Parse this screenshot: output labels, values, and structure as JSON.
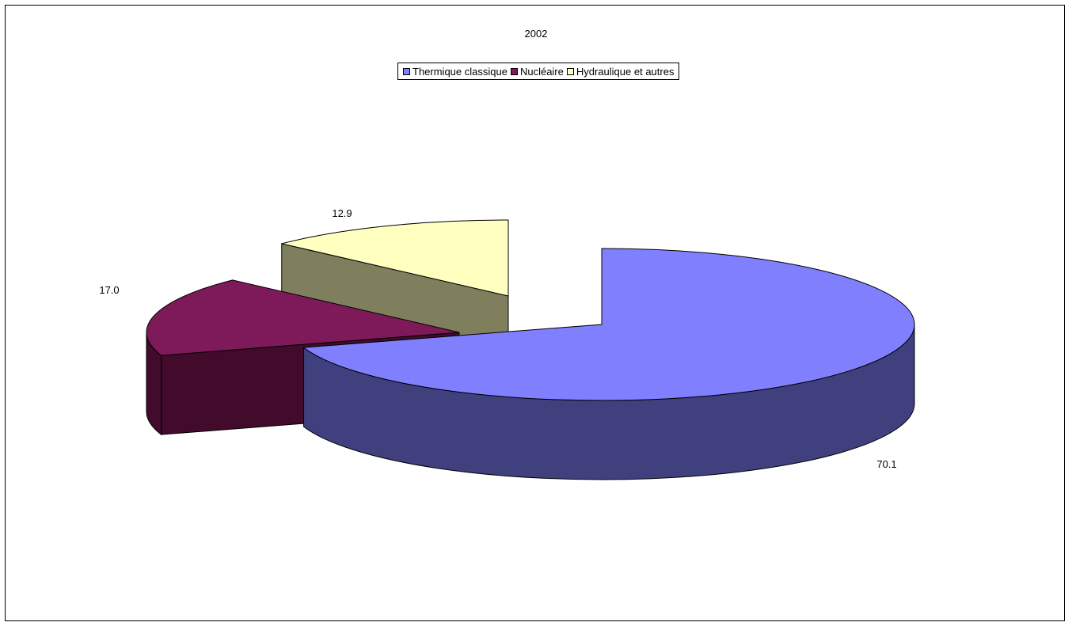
{
  "chart_data": {
    "type": "pie",
    "title": "2002",
    "legend_position": "top",
    "slices": [
      {
        "name": "Thermique classique",
        "value": 70.1,
        "label": "70.1",
        "color": "#8080ff",
        "side_color": "#40407f"
      },
      {
        "name": "Nucléaire",
        "value": 17.0,
        "label": "17.0",
        "color": "#7f1a5a",
        "side_color": "#420b2c"
      },
      {
        "name": "Hydraulique et autres",
        "value": 12.9,
        "label": "12.9",
        "color": "#ffffc0",
        "side_color": "#7f7f5e"
      }
    ]
  }
}
